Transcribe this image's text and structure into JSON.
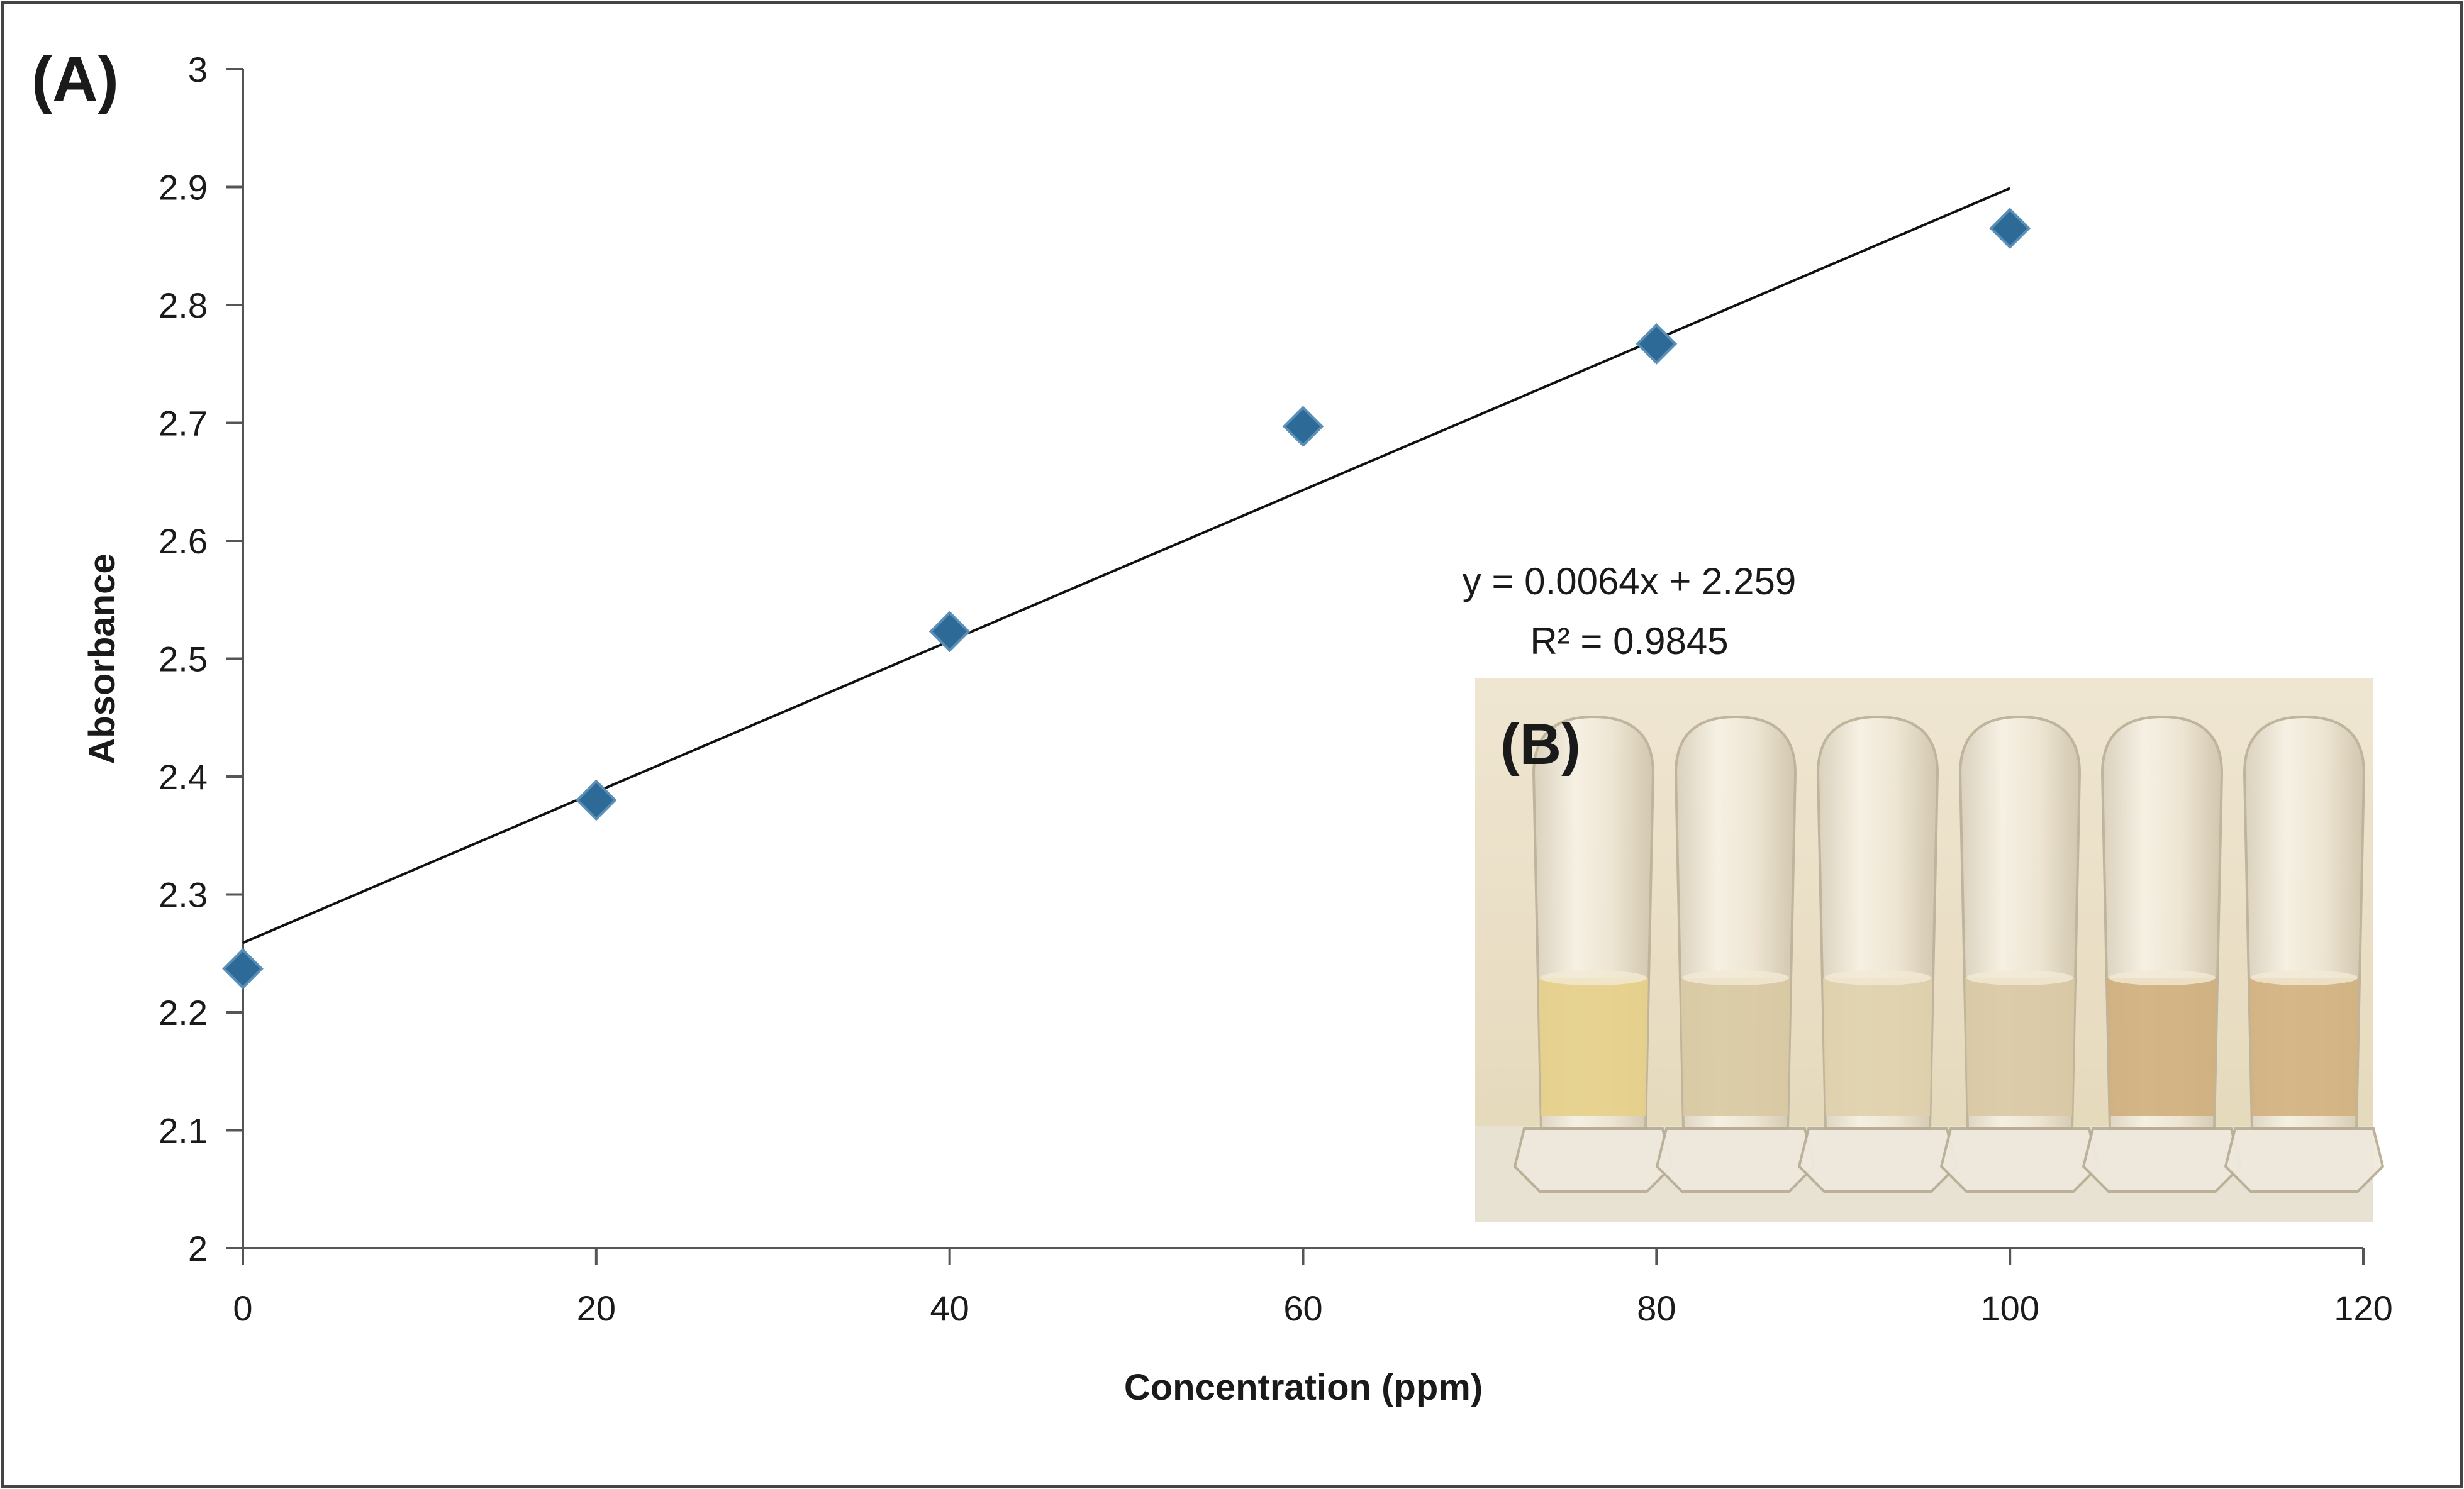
{
  "panel_a_label": "(A)",
  "panel_b_label": "(B)",
  "chart_data": {
    "type": "scatter",
    "title": "",
    "xlabel": "Concentration (ppm)",
    "ylabel": "Absorbance",
    "xlim": [
      0,
      120
    ],
    "ylim": [
      2,
      3
    ],
    "xticks": [
      0,
      20,
      40,
      60,
      80,
      100,
      120
    ],
    "yticks": [
      2,
      2.1,
      2.2,
      2.3,
      2.4,
      2.5,
      2.6,
      2.7,
      2.8,
      2.9,
      3
    ],
    "series": [
      {
        "name": "Absorbance",
        "marker": "diamond",
        "color": "#2e6a97",
        "x": [
          0,
          20,
          40,
          60,
          80,
          100
        ],
        "y": [
          2.237,
          2.38,
          2.523,
          2.697,
          2.767,
          2.865
        ]
      }
    ],
    "trendline": {
      "slope": 0.0064,
      "intercept": 2.259,
      "x_range": [
        0,
        100
      ],
      "equation": "y = 0.0064x + 2.259",
      "r_squared": "R² = 0.9845"
    }
  },
  "inset_photo": {
    "tube_count": 6,
    "background_color": "#ede3cc",
    "tube_liquid_colors": [
      "#e6cf88",
      "#d8c9a2",
      "#dfd0ac",
      "#d9c8a3",
      "#cfae7c",
      "#d2b07e"
    ]
  }
}
